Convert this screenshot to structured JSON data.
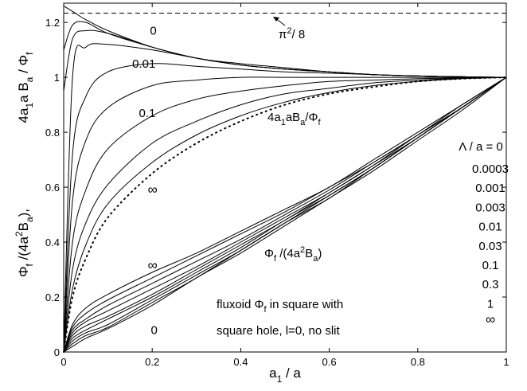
{
  "chart_data": {
    "type": "line",
    "title": "",
    "xlim": [
      0,
      1
    ],
    "ylim": [
      0,
      1.27
    ],
    "grid": false,
    "x_ticks": [
      "0",
      "0.2",
      "0.4",
      "0.6",
      "0.8",
      "1"
    ],
    "y_ticks": [
      "0",
      "0.2",
      "0.4",
      "0.6",
      "0.8",
      "1",
      "1.2"
    ],
    "x_tick_values": [
      0,
      0.2,
      0.4,
      0.6,
      0.8,
      1
    ],
    "y_tick_values": [
      0,
      0.2,
      0.4,
      0.6,
      0.8,
      1,
      1.2
    ],
    "xlabel": {
      "main": "a",
      "sub": "1",
      "rest": " / a"
    },
    "ylabel": {
      "lower": [
        [
          "t",
          "Φ"
        ],
        [
          "s",
          "f"
        ],
        [
          "t",
          " /(4a"
        ],
        [
          "sup",
          "2"
        ],
        [
          "t",
          "B"
        ],
        [
          "s",
          "a"
        ],
        [
          "t",
          "),"
        ]
      ],
      "upper": [
        [
          "t",
          "4a"
        ],
        [
          "s",
          "1"
        ],
        [
          "t",
          "a B"
        ],
        [
          "s",
          "a"
        ],
        [
          "t",
          " / Φ"
        ],
        [
          "s",
          "f"
        ]
      ]
    },
    "reference_line": {
      "y": 1.2337,
      "style": "dashed",
      "label_base": "π",
      "label_sup": "2",
      "label_rest": "/ 8"
    },
    "x": [
      0,
      0.02,
      0.05,
      0.1,
      0.2,
      0.3,
      0.4,
      0.5,
      0.6,
      0.7,
      0.8,
      0.9,
      1.0
    ],
    "upper_series": [
      {
        "label": "0",
        "values": [
          1.26,
          1.24,
          1.21,
          1.17,
          1.11,
          1.07,
          1.05,
          1.035,
          1.02,
          1.01,
          1.005,
          1.002,
          1.0
        ]
      },
      {
        "values": [
          1.1,
          1.19,
          1.2,
          1.16,
          1.11,
          1.07,
          1.045,
          1.03,
          1.02,
          1.01,
          1.005,
          1.002,
          1.0
        ]
      },
      {
        "values": [
          0.95,
          1.14,
          1.17,
          1.16,
          1.11,
          1.07,
          1.045,
          1.03,
          1.02,
          1.01,
          1.005,
          1.002,
          1.0
        ]
      },
      {
        "values": [
          0.0,
          1.0,
          1.11,
          1.12,
          1.1,
          1.07,
          1.045,
          1.03,
          1.02,
          1.01,
          1.005,
          1.002,
          1.0
        ]
      },
      {
        "label": "0.01",
        "values": [
          0.0,
          0.72,
          0.93,
          1.02,
          1.05,
          1.04,
          1.03,
          1.02,
          1.015,
          1.01,
          1.005,
          1.002,
          1.0
        ]
      },
      {
        "values": [
          0.0,
          0.55,
          0.77,
          0.89,
          0.97,
          0.99,
          1.0,
          1.0,
          1.0,
          1.0,
          1.0,
          1.0,
          1.0
        ]
      },
      {
        "label": "0.1",
        "values": [
          0.0,
          0.4,
          0.59,
          0.74,
          0.86,
          0.92,
          0.95,
          0.97,
          0.985,
          0.99,
          0.995,
          0.998,
          1.0
        ]
      },
      {
        "values": [
          0.0,
          0.3,
          0.47,
          0.61,
          0.76,
          0.84,
          0.9,
          0.94,
          0.96,
          0.98,
          0.99,
          0.997,
          1.0
        ]
      },
      {
        "values": [
          0.0,
          0.23,
          0.39,
          0.54,
          0.69,
          0.79,
          0.86,
          0.91,
          0.945,
          0.97,
          0.985,
          0.995,
          1.0
        ]
      }
    ],
    "upper_inf_dotted": {
      "label": "∞",
      "values": [
        0.0,
        0.2,
        0.34,
        0.49,
        0.65,
        0.76,
        0.84,
        0.9,
        0.94,
        0.965,
        0.985,
        0.995,
        1.0
      ]
    },
    "lower_series": [
      {
        "label": "∞",
        "values": [
          0.0,
          0.1,
          0.16,
          0.21,
          0.29,
          0.36,
          0.44,
          0.52,
          0.6,
          0.7,
          0.8,
          0.9,
          1.0
        ]
      },
      {
        "values": [
          0.0,
          0.09,
          0.14,
          0.19,
          0.27,
          0.35,
          0.43,
          0.51,
          0.6,
          0.69,
          0.79,
          0.9,
          1.0
        ]
      },
      {
        "values": [
          0.0,
          0.08,
          0.12,
          0.17,
          0.25,
          0.33,
          0.41,
          0.5,
          0.59,
          0.69,
          0.79,
          0.89,
          1.0
        ]
      },
      {
        "values": [
          0.0,
          0.07,
          0.11,
          0.15,
          0.23,
          0.31,
          0.4,
          0.49,
          0.58,
          0.68,
          0.79,
          0.89,
          1.0
        ]
      },
      {
        "values": [
          0.0,
          0.06,
          0.095,
          0.13,
          0.21,
          0.3,
          0.39,
          0.48,
          0.58,
          0.68,
          0.78,
          0.89,
          1.0
        ]
      },
      {
        "values": [
          0.0,
          0.05,
          0.08,
          0.12,
          0.2,
          0.29,
          0.38,
          0.48,
          0.57,
          0.67,
          0.78,
          0.89,
          1.0
        ]
      },
      {
        "values": [
          0.0,
          0.04,
          0.07,
          0.1,
          0.19,
          0.28,
          0.37,
          0.47,
          0.57,
          0.67,
          0.78,
          0.89,
          1.0
        ]
      },
      {
        "values": [
          0.0,
          0.03,
          0.06,
          0.09,
          0.18,
          0.27,
          0.37,
          0.47,
          0.56,
          0.67,
          0.78,
          0.89,
          1.0
        ]
      },
      {
        "label": "0",
        "values": [
          0.0,
          0.02,
          0.05,
          0.085,
          0.17,
          0.27,
          0.36,
          0.46,
          0.56,
          0.66,
          0.77,
          0.88,
          1.0
        ]
      }
    ],
    "legend": {
      "title": "Λ / a = 0",
      "entries": [
        "0.0003",
        "0.001",
        "0.003",
        "0.01",
        "0.03",
        "0.1",
        "0.3",
        "1",
        "∞"
      ],
      "placement": "right"
    },
    "annotations": {
      "upper_formula": [
        [
          "t",
          "4a"
        ],
        [
          "s",
          "1"
        ],
        [
          "t",
          "aB"
        ],
        [
          "s",
          "a"
        ],
        [
          "t",
          "/Φ"
        ],
        [
          "s",
          "f"
        ]
      ],
      "lower_formula": [
        [
          "t",
          "Φ"
        ],
        [
          "s",
          "f"
        ],
        [
          "t",
          " /(4a"
        ],
        [
          "sup",
          "2"
        ],
        [
          "t",
          "B"
        ],
        [
          "s",
          "a"
        ],
        [
          "t",
          ")"
        ]
      ],
      "caption_line1": [
        [
          "t",
          "fluxoid  Φ"
        ],
        [
          "s",
          "f"
        ],
        [
          "t",
          "  in square with"
        ]
      ],
      "caption_line2": [
        [
          "t",
          "square hole,  l=0,  no slit"
        ]
      ]
    }
  }
}
